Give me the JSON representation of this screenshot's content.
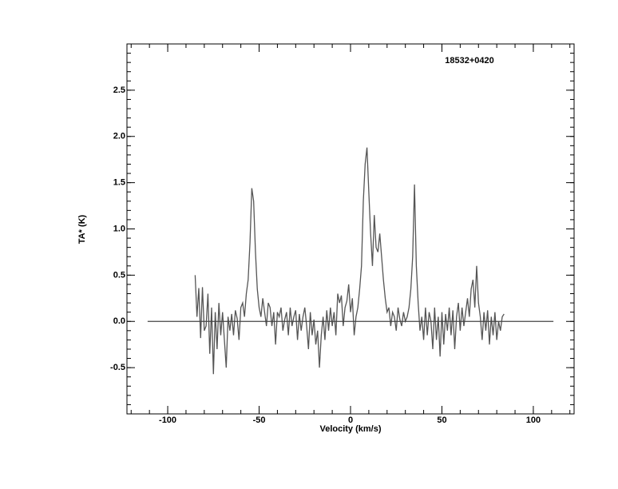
{
  "chart_data": {
    "type": "line",
    "annotation": "18532+0420",
    "x_label": "Velocity (km/s)",
    "y_label": "TA* (K)",
    "xlim": [
      -122.3,
      122.3
    ],
    "ylim": [
      -1.0,
      3.0
    ],
    "xticks": [
      -100,
      -50,
      0,
      50,
      100
    ],
    "yticks": [
      -0.5,
      {
        "value": 0,
        "label": "0.0"
      },
      0.5,
      {
        "value": 1,
        "label": "1.0"
      },
      1.5,
      {
        "value": 2,
        "label": "2.0"
      },
      2.5
    ],
    "xminorticks": [
      -120,
      -110,
      -100,
      -90,
      -80,
      -70,
      -60,
      -50,
      -40,
      -30,
      -20,
      -10,
      0,
      10,
      20,
      30,
      40,
      50,
      60,
      70,
      80,
      90,
      100,
      110,
      120
    ],
    "yminorticks": [
      -1.0,
      -0.9,
      -0.8,
      -0.7,
      -0.6,
      -0.5,
      -0.4,
      -0.3,
      -0.2,
      -0.1,
      0,
      0.1,
      0.2,
      0.3,
      0.4,
      0.5,
      0.6,
      0.7,
      0.8,
      0.9,
      1.0,
      1.1,
      1.2,
      1.3,
      1.4,
      1.5,
      1.6,
      1.7,
      1.8,
      1.9,
      2.0,
      2.1,
      2.2,
      2.3,
      2.4,
      2.5,
      2.6,
      2.7,
      2.8,
      2.9,
      3.0
    ],
    "grid": false,
    "series": [
      {
        "color": "#555555",
        "x": [
          -85,
          -84,
          -83,
          -82,
          -81,
          -80,
          -79,
          -78,
          -77,
          -76,
          -75,
          -74,
          -73,
          -72,
          -71,
          -70,
          -69,
          -68,
          -67,
          -66,
          -65,
          -64,
          -63,
          -62,
          -61,
          -60,
          -59,
          -58,
          -57,
          -56,
          -55,
          -54,
          -53,
          -52,
          -51,
          -50,
          -49,
          -48,
          -47,
          -46,
          -45,
          -44,
          -43,
          -42,
          -41,
          -40,
          -39,
          -38,
          -37,
          -36,
          -35,
          -34,
          -33,
          -32,
          -31,
          -30,
          -29,
          -28,
          -27,
          -26,
          -25,
          -24,
          -23,
          -22,
          -21,
          -20,
          -19,
          -18,
          -17,
          -16,
          -15,
          -14,
          -13,
          -12,
          -11,
          -10,
          -9,
          -8,
          -7,
          -6,
          -5,
          -4,
          -3,
          -2,
          -1,
          0,
          1,
          2,
          3,
          4,
          5,
          6,
          7,
          8,
          9,
          10,
          11,
          12,
          13,
          14,
          15,
          16,
          17,
          18,
          19,
          20,
          21,
          22,
          23,
          24,
          25,
          26,
          27,
          28,
          29,
          30,
          31,
          32,
          33,
          34,
          35,
          36,
          37,
          38,
          39,
          40,
          41,
          42,
          43,
          44,
          45,
          46,
          47,
          48,
          49,
          50,
          51,
          52,
          53,
          54,
          55,
          56,
          57,
          58,
          59,
          60,
          61,
          62,
          63,
          64,
          65,
          66,
          67,
          68,
          69,
          70,
          71,
          72,
          73,
          74,
          75,
          76,
          77,
          78,
          79,
          80,
          81,
          82,
          83,
          84
        ],
        "values": [
          0.5,
          0.05,
          0.36,
          -0.18,
          0.37,
          -0.1,
          -0.05,
          0.3,
          -0.35,
          0.15,
          -0.57,
          0.1,
          -0.3,
          0.2,
          -0.15,
          0.1,
          -0.2,
          -0.5,
          0.05,
          -0.1,
          0.08,
          -0.15,
          0.12,
          0.03,
          -0.2,
          0.15,
          0.2,
          0.05,
          0.3,
          0.45,
          0.85,
          1.44,
          1.3,
          0.75,
          0.35,
          0.15,
          0.05,
          0.25,
          0.1,
          -0.05,
          0.2,
          0.15,
          -0.05,
          0.1,
          -0.25,
          0.1,
          0.05,
          0.15,
          -0.1,
          0.02,
          0.1,
          -0.15,
          0.15,
          -0.05,
          0.05,
          0.12,
          -0.2,
          0.08,
          -0.1,
          0.05,
          0.15,
          -0.05,
          -0.3,
          0.1,
          -0.15,
          0.02,
          -0.25,
          -0.1,
          -0.5,
          -0.15,
          0.05,
          -0.2,
          0.12,
          -0.1,
          0.15,
          -0.05,
          0.1,
          -0.15,
          0.3,
          0.2,
          0.28,
          -0.05,
          0.15,
          0.22,
          0.4,
          0.1,
          0.25,
          -0.15,
          0.05,
          0.15,
          0.35,
          0.6,
          1.3,
          1.7,
          1.88,
          1.4,
          0.95,
          0.6,
          1.15,
          0.8,
          0.75,
          0.95,
          0.7,
          0.45,
          0.25,
          0.1,
          0.15,
          -0.05,
          0.1,
          0.05,
          -0.1,
          0.15,
          0.02,
          -0.05,
          0.1,
          0.0,
          0.05,
          0.15,
          0.35,
          0.7,
          1.48,
          0.6,
          0.2,
          -0.1,
          0.05,
          -0.2,
          0.15,
          -0.15,
          0.1,
          0.0,
          -0.3,
          0.15,
          -0.2,
          0.05,
          -0.38,
          0.1,
          -0.25,
          0.08,
          -0.1,
          0.15,
          -0.15,
          0.12,
          -0.3,
          0.05,
          0.2,
          -0.1,
          0.15,
          -0.05,
          0.1,
          0.25,
          0.05,
          0.35,
          0.45,
          0.15,
          0.6,
          0.2,
          0.05,
          -0.2,
          0.1,
          -0.1,
          0.12,
          -0.25,
          0.05,
          -0.15,
          0.1,
          -0.2,
          0.0,
          -0.1,
          0.05,
          0.08
        ]
      },
      {
        "color": "#444444",
        "x": [
          -111,
          111
        ],
        "values": [
          0,
          0
        ]
      }
    ]
  }
}
